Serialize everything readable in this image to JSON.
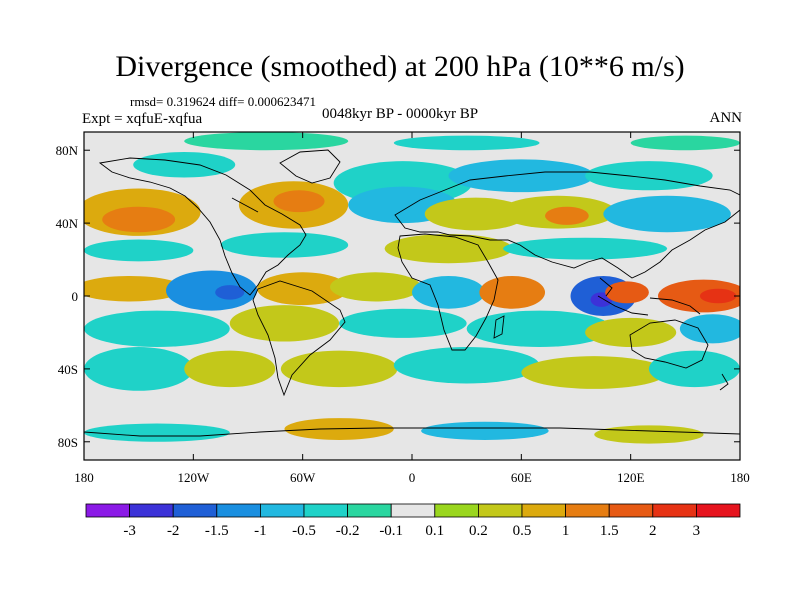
{
  "chart_data": {
    "type": "heatmap",
    "title": "Divergence (smoothed) at 200 hPa (10**6 m/s)",
    "stats": "rmsd= 0.319624 diff= 0.000623471",
    "experiment": "Expt = xqfuE-xqfua",
    "period": "0048kyr BP - 0000kyr BP",
    "season": "ANN",
    "xlim": [
      -180,
      180
    ],
    "ylim": [
      -90,
      90
    ],
    "x_ticks": [
      {
        "value": -180,
        "label": "180"
      },
      {
        "value": -120,
        "label": "120W"
      },
      {
        "value": -60,
        "label": "60W"
      },
      {
        "value": 0,
        "label": "0"
      },
      {
        "value": 60,
        "label": "60E"
      },
      {
        "value": 120,
        "label": "120E"
      },
      {
        "value": 180,
        "label": "180"
      }
    ],
    "y_ticks": [
      {
        "value": 80,
        "label": "80N"
      },
      {
        "value": 40,
        "label": "40N"
      },
      {
        "value": 0,
        "label": "0"
      },
      {
        "value": -40,
        "label": "40S"
      },
      {
        "value": -80,
        "label": "80S"
      }
    ],
    "colorbar": {
      "levels": [
        "-3",
        "-2",
        "-1.5",
        "-1",
        "-0.5",
        "-0.2",
        "-0.1",
        "0.1",
        "0.2",
        "0.5",
        "1",
        "1.5",
        "2",
        "3"
      ],
      "colors": [
        "#8b1ae6",
        "#3c32d8",
        "#1f5fd6",
        "#1a8fe0",
        "#22b8e0",
        "#1fd2c8",
        "#2ad6a0",
        "#e6e6e6",
        "#9ad61e",
        "#c3c81a",
        "#dcaa0e",
        "#e67d12",
        "#e65a14",
        "#e63214",
        "#e6141e"
      ]
    },
    "blobs": [
      {
        "lon": -125,
        "lat": 72,
        "rx": 28,
        "ry": 7,
        "level": 5
      },
      {
        "lon": -80,
        "lat": 85,
        "rx": 45,
        "ry": 5,
        "level": 6
      },
      {
        "lon": 30,
        "lat": 84,
        "rx": 40,
        "ry": 4,
        "level": 5
      },
      {
        "lon": 150,
        "lat": 84,
        "rx": 30,
        "ry": 4,
        "level": 6
      },
      {
        "lon": -5,
        "lat": 62,
        "rx": 38,
        "ry": 12,
        "level": 5
      },
      {
        "lon": 60,
        "lat": 66,
        "rx": 40,
        "ry": 9,
        "level": 4
      },
      {
        "lon": 130,
        "lat": 66,
        "rx": 35,
        "ry": 8,
        "level": 5
      },
      {
        "lon": -150,
        "lat": 46,
        "rx": 34,
        "ry": 13,
        "level": 10
      },
      {
        "lon": -150,
        "lat": 42,
        "rx": 20,
        "ry": 7,
        "level": 11
      },
      {
        "lon": -65,
        "lat": 50,
        "rx": 30,
        "ry": 13,
        "level": 10
      },
      {
        "lon": -62,
        "lat": 52,
        "rx": 14,
        "ry": 6,
        "level": 11
      },
      {
        "lon": -5,
        "lat": 50,
        "rx": 30,
        "ry": 10,
        "level": 4
      },
      {
        "lon": 35,
        "lat": 45,
        "rx": 28,
        "ry": 9,
        "level": 9
      },
      {
        "lon": 80,
        "lat": 46,
        "rx": 32,
        "ry": 9,
        "level": 9
      },
      {
        "lon": 85,
        "lat": 44,
        "rx": 12,
        "ry": 5,
        "level": 11
      },
      {
        "lon": 140,
        "lat": 45,
        "rx": 35,
        "ry": 10,
        "level": 4
      },
      {
        "lon": -150,
        "lat": 25,
        "rx": 30,
        "ry": 6,
        "level": 5
      },
      {
        "lon": -70,
        "lat": 28,
        "rx": 35,
        "ry": 7,
        "level": 5
      },
      {
        "lon": 20,
        "lat": 26,
        "rx": 35,
        "ry": 8,
        "level": 9
      },
      {
        "lon": 95,
        "lat": 26,
        "rx": 45,
        "ry": 6,
        "level": 5
      },
      {
        "lon": -155,
        "lat": 4,
        "rx": 30,
        "ry": 7,
        "level": 10
      },
      {
        "lon": -110,
        "lat": 3,
        "rx": 25,
        "ry": 11,
        "level": 3
      },
      {
        "lon": -100,
        "lat": 2,
        "rx": 8,
        "ry": 4,
        "level": 2
      },
      {
        "lon": -60,
        "lat": 4,
        "rx": 25,
        "ry": 9,
        "level": 10
      },
      {
        "lon": -20,
        "lat": 5,
        "rx": 25,
        "ry": 8,
        "level": 9
      },
      {
        "lon": 20,
        "lat": 2,
        "rx": 20,
        "ry": 9,
        "level": 4
      },
      {
        "lon": 55,
        "lat": 2,
        "rx": 18,
        "ry": 9,
        "level": 11
      },
      {
        "lon": 105,
        "lat": 0,
        "rx": 18,
        "ry": 11,
        "level": 2
      },
      {
        "lon": 104,
        "lat": -2,
        "rx": 6,
        "ry": 4,
        "level": 1
      },
      {
        "lon": 118,
        "lat": 2,
        "rx": 12,
        "ry": 6,
        "level": 12
      },
      {
        "lon": 160,
        "lat": 0,
        "rx": 25,
        "ry": 9,
        "level": 12
      },
      {
        "lon": 168,
        "lat": 0,
        "rx": 10,
        "ry": 4,
        "level": 13
      },
      {
        "lon": -140,
        "lat": -18,
        "rx": 40,
        "ry": 10,
        "level": 5
      },
      {
        "lon": -70,
        "lat": -15,
        "rx": 30,
        "ry": 10,
        "level": 9
      },
      {
        "lon": -5,
        "lat": -15,
        "rx": 35,
        "ry": 8,
        "level": 5
      },
      {
        "lon": 70,
        "lat": -18,
        "rx": 40,
        "ry": 10,
        "level": 5
      },
      {
        "lon": 120,
        "lat": -20,
        "rx": 25,
        "ry": 8,
        "level": 9
      },
      {
        "lon": 165,
        "lat": -18,
        "rx": 18,
        "ry": 8,
        "level": 4
      },
      {
        "lon": -150,
        "lat": -40,
        "rx": 30,
        "ry": 12,
        "level": 5
      },
      {
        "lon": -100,
        "lat": -40,
        "rx": 25,
        "ry": 10,
        "level": 9
      },
      {
        "lon": -40,
        "lat": -40,
        "rx": 32,
        "ry": 10,
        "level": 9
      },
      {
        "lon": 30,
        "lat": -38,
        "rx": 40,
        "ry": 10,
        "level": 5
      },
      {
        "lon": 100,
        "lat": -42,
        "rx": 40,
        "ry": 9,
        "level": 9
      },
      {
        "lon": 155,
        "lat": -40,
        "rx": 25,
        "ry": 10,
        "level": 5
      },
      {
        "lon": -140,
        "lat": -75,
        "rx": 40,
        "ry": 5,
        "level": 5
      },
      {
        "lon": -40,
        "lat": -73,
        "rx": 30,
        "ry": 6,
        "level": 10
      },
      {
        "lon": 40,
        "lat": -74,
        "rx": 35,
        "ry": 5,
        "level": 4
      },
      {
        "lon": 130,
        "lat": -76,
        "rx": 30,
        "ry": 5,
        "level": 9
      }
    ]
  }
}
